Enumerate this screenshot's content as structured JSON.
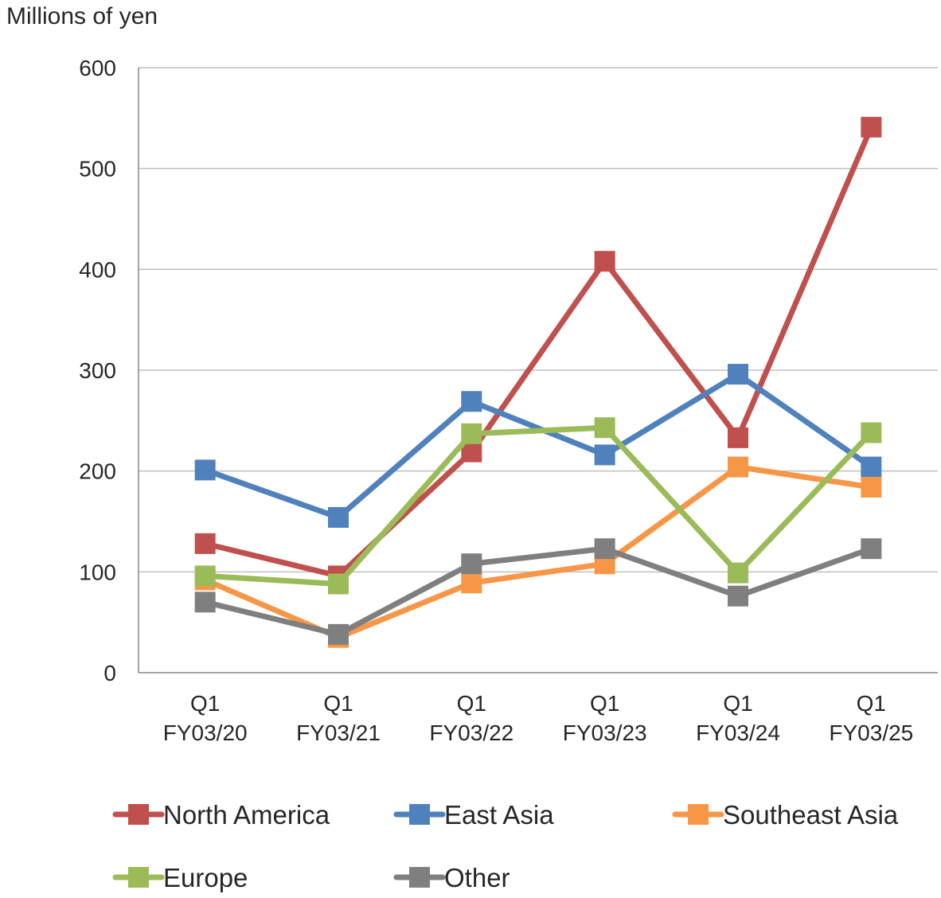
{
  "chart_data": {
    "type": "line",
    "ylabel": "Millions of yen",
    "categories": [
      [
        "Q1",
        "FY03/20"
      ],
      [
        "Q1",
        "FY03/21"
      ],
      [
        "Q1",
        "FY03/22"
      ],
      [
        "Q1",
        "FY03/23"
      ],
      [
        "Q1",
        "FY03/24"
      ],
      [
        "Q1",
        "FY03/25"
      ]
    ],
    "ylim": [
      0,
      600
    ],
    "yticks": [
      0,
      100,
      200,
      300,
      400,
      500,
      600
    ],
    "grid": true,
    "legend_position": "bottom",
    "series": [
      {
        "name": "North America",
        "color": "#c0504d",
        "values": [
          128,
          96,
          219,
          408,
          233,
          541
        ]
      },
      {
        "name": "East Asia",
        "color": "#4f81bd",
        "values": [
          201,
          154,
          269,
          216,
          296,
          204
        ]
      },
      {
        "name": "Southeast Asia",
        "color": "#f79646",
        "values": [
          92,
          35,
          89,
          108,
          204,
          184
        ]
      },
      {
        "name": "Europe",
        "color": "#9bbb59",
        "values": [
          96,
          88,
          237,
          243,
          99,
          238
        ]
      },
      {
        "name": "Other",
        "color": "#7f7f7f",
        "values": [
          70,
          38,
          108,
          123,
          76,
          123
        ]
      }
    ]
  }
}
